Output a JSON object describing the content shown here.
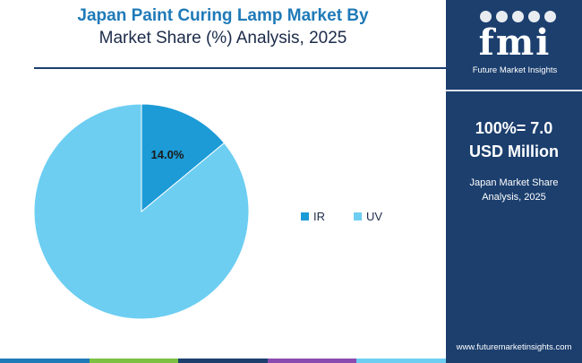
{
  "header": {
    "title_line1": "Japan Paint Curing Lamp Market By",
    "title_line2": "Market Share (%) Analysis, 2025"
  },
  "sidebar": {
    "logo_text": "fmi",
    "logo_subtext": "Future Market Insights",
    "total_line1": "100%= 7.0",
    "total_line2": "USD Million",
    "caption_line1": "Japan Market Share",
    "caption_line2": "Analysis, 2025",
    "website": "www.futuremarketinsights.com"
  },
  "colors": {
    "ir": "#1c9bd7",
    "uv": "#6dcef2",
    "brand_dark": "#1c3f6e",
    "title_blue": "#1f7ab8",
    "bottom_bar": [
      "#1f7ab8",
      "#7cc142",
      "#1c3f6e",
      "#8a4bb0",
      "#6dcef2"
    ]
  },
  "chart_data": {
    "type": "pie",
    "title": "Japan Paint Curing Lamp Market By Market Share (%) Analysis, 2025",
    "legend_position": "right",
    "slices": [
      {
        "label": "IR",
        "value": 14.0,
        "data_label": "14.0%",
        "color": "#1c9bd7"
      },
      {
        "label": "UV",
        "value": 86.0,
        "data_label": "",
        "color": "#6dcef2"
      }
    ]
  }
}
